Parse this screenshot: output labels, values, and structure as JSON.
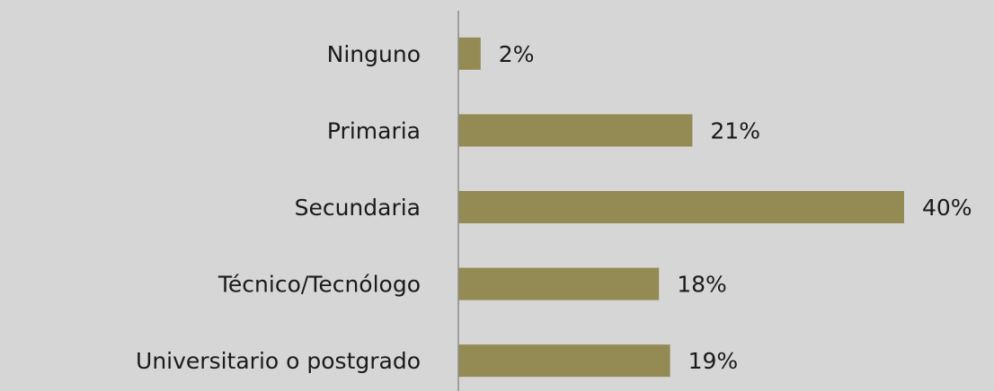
{
  "chart_data": {
    "type": "bar",
    "orientation": "horizontal",
    "categories": [
      "Ninguno",
      "Primaria",
      "Secundaria",
      "Técnico/Tecnólogo",
      "Universitario o postgrado"
    ],
    "values": [
      2,
      21,
      40,
      18,
      19
    ],
    "value_labels": [
      "2%",
      "21%",
      "40%",
      "18%",
      "19%"
    ],
    "color": "#948a54"
  }
}
